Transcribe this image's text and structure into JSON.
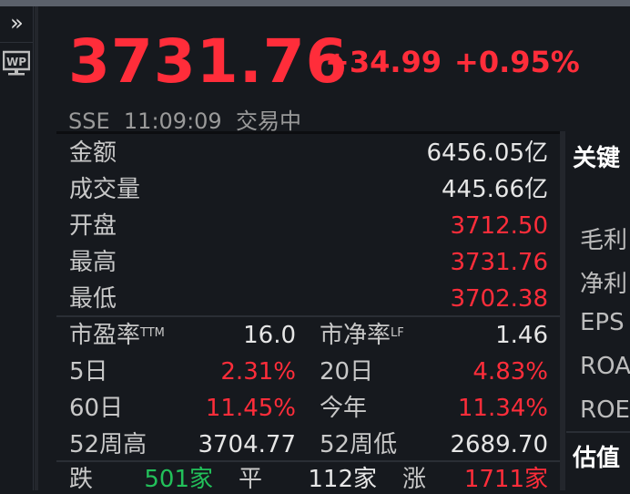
{
  "sidebar": {
    "expand_icon": "double-chevron-right-icon",
    "wp_icon": "wp-monitor-icon",
    "wp_label": "WP"
  },
  "quote": {
    "price": "3731.76",
    "change": "+34.99",
    "change_pct": "+0.95%",
    "exchange": "SSE",
    "time": "11:09:09",
    "status": "交易中"
  },
  "stats": {
    "amount": {
      "label": "金额",
      "value": "6456.05亿"
    },
    "volume": {
      "label": "成交量",
      "value": "445.66亿"
    },
    "open": {
      "label": "开盘",
      "value": "3712.50"
    },
    "high": {
      "label": "最高",
      "value": "3731.76"
    },
    "low": {
      "label": "最低",
      "value": "3702.38"
    },
    "pe": {
      "label": "市盈率",
      "sup": "TTM",
      "value": "16.0"
    },
    "pb": {
      "label": "市净率",
      "sup": "LF",
      "value": "1.46"
    },
    "d5": {
      "label": "5日",
      "value": "2.31%"
    },
    "d20": {
      "label": "20日",
      "value": "4.83%"
    },
    "d60": {
      "label": "60日",
      "value": "11.45%"
    },
    "ytd": {
      "label": "今年",
      "value": "11.34%"
    },
    "w52h": {
      "label": "52周高",
      "value": "3704.77"
    },
    "w52l": {
      "label": "52周低",
      "value": "2689.70"
    }
  },
  "breadth": {
    "down_label": "跌",
    "down": "501家",
    "flat_label": "平",
    "flat": "112家",
    "up_label": "涨",
    "up": "1711家"
  },
  "right": {
    "title": "关键",
    "items": [
      "毛利",
      "净利",
      "EPS",
      "ROA",
      "ROE"
    ],
    "section2": "估值"
  },
  "colors": {
    "up": "#ff2d3a",
    "down": "#22c05a",
    "bg": "#16191e"
  }
}
